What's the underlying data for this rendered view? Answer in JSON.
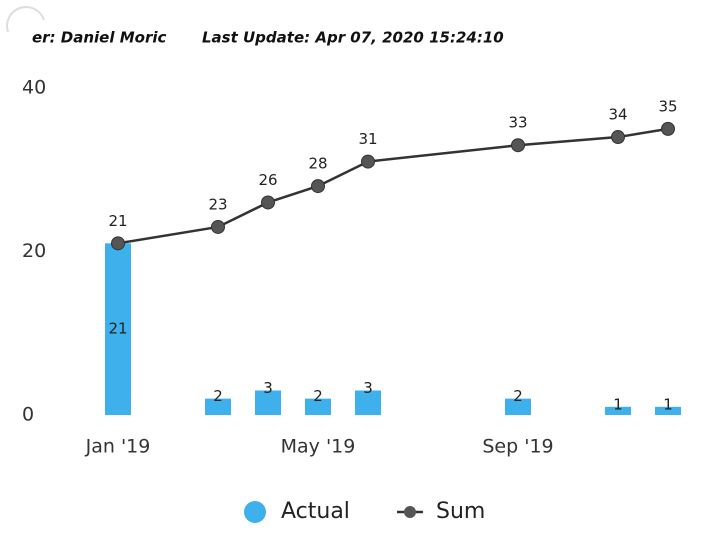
{
  "header": {
    "user": "er: Daniel Moric",
    "update": "Last Update: Apr 07, 2020 15:24:10"
  },
  "chart_data": {
    "type": "bar+line",
    "x": [
      "2019-01",
      "2019-03",
      "2019-04",
      "2019-05",
      "2019-06",
      "2019-09",
      "2019-11",
      "2019-12"
    ],
    "xlim": [
      "2019-01",
      "2019-12"
    ],
    "xticks": [
      {
        "value": "2019-01",
        "label": "Jan '19"
      },
      {
        "value": "2019-05",
        "label": "May '19"
      },
      {
        "value": "2019-09",
        "label": "Sep '19"
      }
    ],
    "ylim": [
      0,
      40
    ],
    "yticks": [
      0,
      20,
      40
    ],
    "series": [
      {
        "name": "Actual",
        "type": "bar",
        "color": "#3eb0ec",
        "values": [
          21,
          2,
          3,
          2,
          3,
          2,
          1,
          1
        ]
      },
      {
        "name": "Sum",
        "type": "line",
        "color": "#333333",
        "values": [
          21,
          23,
          26,
          28,
          31,
          33,
          34,
          35
        ]
      }
    ]
  }
}
